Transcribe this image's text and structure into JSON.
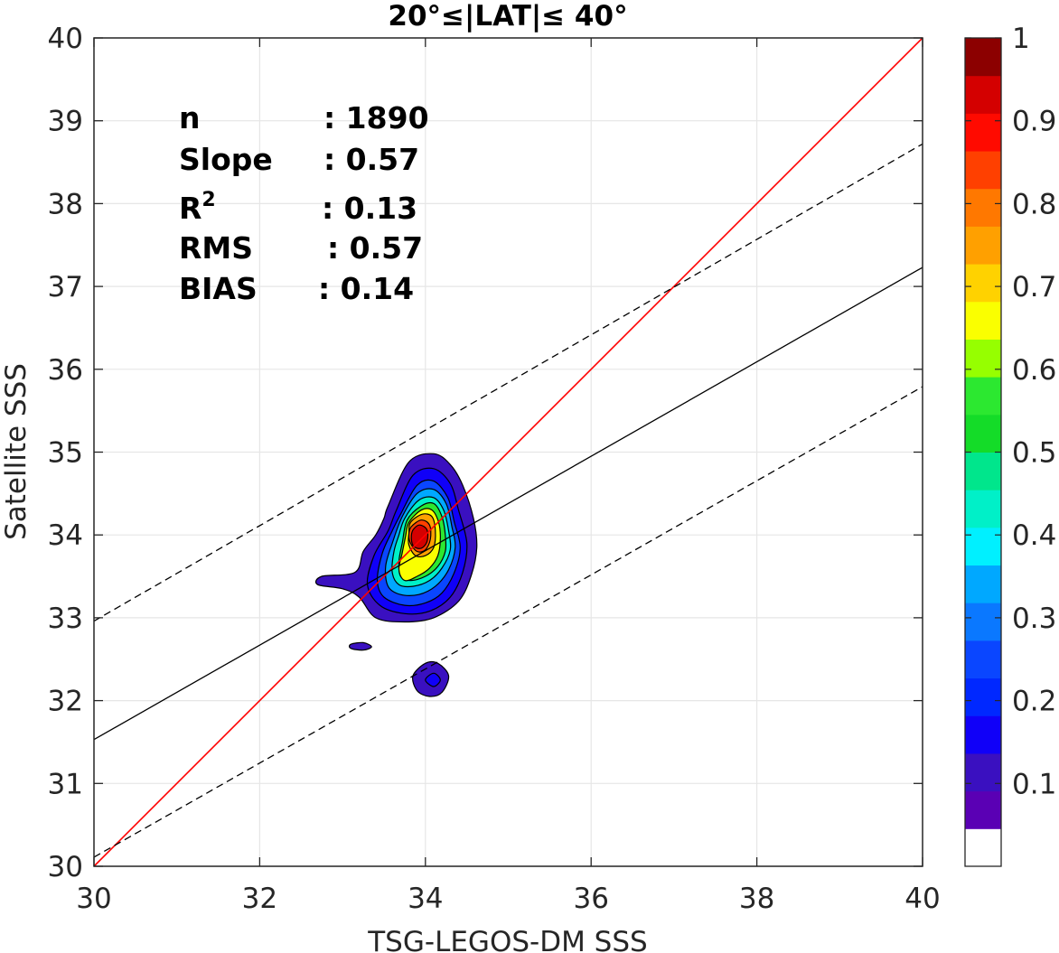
{
  "chart_data": {
    "type": "contour",
    "title": "20°≤|LAT|≤ 40°",
    "xlabel": "TSG-LEGOS-DM SSS",
    "ylabel": "Satellite SSS",
    "xlim": [
      30,
      40
    ],
    "ylim": [
      30,
      40
    ],
    "x_ticks": [
      30,
      32,
      34,
      36,
      38,
      40
    ],
    "y_ticks": [
      30,
      31,
      32,
      33,
      34,
      35,
      36,
      37,
      38,
      39,
      40
    ],
    "grid": true,
    "stats": [
      {
        "label": "n",
        "sep": ":",
        "value": "1890"
      },
      {
        "label": "Slope",
        "sep": ":",
        "value": "0.57"
      },
      {
        "label": "R",
        "sup": "2",
        "sep": ":",
        "value": "0.13"
      },
      {
        "label": "RMS",
        "sep": ":",
        "value": "0.57"
      },
      {
        "label": "BIAS",
        "sep": ":",
        "value": "0.14"
      }
    ],
    "lines": [
      {
        "name": "one-to-one",
        "color": "#ff0000",
        "style": "solid",
        "points": [
          [
            30,
            30
          ],
          [
            40,
            40
          ]
        ]
      },
      {
        "name": "regression",
        "color": "#000000",
        "style": "solid",
        "points": [
          [
            30,
            31.53
          ],
          [
            40,
            37.23
          ]
        ]
      },
      {
        "name": "upper-bound",
        "color": "#000000",
        "style": "dashed",
        "points": [
          [
            30,
            32.96
          ],
          [
            40,
            38.72
          ]
        ]
      },
      {
        "name": "lower-bound",
        "color": "#000000",
        "style": "dashed",
        "points": [
          [
            30,
            30.11
          ],
          [
            40,
            35.79
          ]
        ]
      }
    ],
    "contour_levels": [
      {
        "level": 0.05,
        "color": "#3a10c0",
        "points": [
          [
            33.55,
            34.35
          ],
          [
            33.8,
            34.88
          ],
          [
            34.1,
            34.98
          ],
          [
            34.3,
            34.85
          ],
          [
            34.45,
            34.6
          ],
          [
            34.58,
            34.2
          ],
          [
            34.62,
            33.85
          ],
          [
            34.55,
            33.5
          ],
          [
            34.4,
            33.2
          ],
          [
            34.1,
            33.0
          ],
          [
            33.75,
            32.95
          ],
          [
            33.4,
            33.0
          ],
          [
            33.2,
            33.25
          ],
          [
            33.0,
            33.35
          ],
          [
            32.7,
            33.4
          ],
          [
            32.75,
            33.5
          ],
          [
            33.15,
            33.55
          ],
          [
            33.25,
            33.8
          ],
          [
            33.4,
            34.0
          ],
          [
            33.5,
            34.2
          ]
        ]
      },
      {
        "level": 0.1,
        "color": "#1000f8",
        "points": [
          [
            33.65,
            34.3
          ],
          [
            33.85,
            34.72
          ],
          [
            34.1,
            34.8
          ],
          [
            34.3,
            34.62
          ],
          [
            34.4,
            34.3
          ],
          [
            34.5,
            33.9
          ],
          [
            34.45,
            33.55
          ],
          [
            34.3,
            33.25
          ],
          [
            34.05,
            33.08
          ],
          [
            33.75,
            33.05
          ],
          [
            33.45,
            33.15
          ],
          [
            33.3,
            33.4
          ],
          [
            33.38,
            33.75
          ],
          [
            33.55,
            34.05
          ]
        ]
      },
      {
        "level": 0.2,
        "color": "#0a46ff",
        "points": [
          [
            33.7,
            34.25
          ],
          [
            33.9,
            34.6
          ],
          [
            34.1,
            34.65
          ],
          [
            34.27,
            34.45
          ],
          [
            34.35,
            34.15
          ],
          [
            34.42,
            33.85
          ],
          [
            34.35,
            33.55
          ],
          [
            34.2,
            33.3
          ],
          [
            34.0,
            33.18
          ],
          [
            33.75,
            33.15
          ],
          [
            33.5,
            33.25
          ],
          [
            33.42,
            33.45
          ],
          [
            33.48,
            33.78
          ],
          [
            33.6,
            34.05
          ]
        ]
      },
      {
        "level": 0.3,
        "color": "#00a8ff",
        "points": [
          [
            33.72,
            34.22
          ],
          [
            33.9,
            34.5
          ],
          [
            34.1,
            34.55
          ],
          [
            34.25,
            34.38
          ],
          [
            34.32,
            34.1
          ],
          [
            34.36,
            33.85
          ],
          [
            34.28,
            33.58
          ],
          [
            34.12,
            33.38
          ],
          [
            33.92,
            33.28
          ],
          [
            33.7,
            33.28
          ],
          [
            33.55,
            33.38
          ],
          [
            33.52,
            33.62
          ],
          [
            33.6,
            33.9
          ]
        ]
      },
      {
        "level": 0.4,
        "color": "#00f0c8",
        "points": [
          [
            33.75,
            34.2
          ],
          [
            33.92,
            34.42
          ],
          [
            34.1,
            34.45
          ],
          [
            34.22,
            34.3
          ],
          [
            34.28,
            34.05
          ],
          [
            34.3,
            33.82
          ],
          [
            34.2,
            33.6
          ],
          [
            34.05,
            33.45
          ],
          [
            33.85,
            33.38
          ],
          [
            33.68,
            33.4
          ],
          [
            33.6,
            33.55
          ],
          [
            33.62,
            33.8
          ],
          [
            33.68,
            34.0
          ]
        ]
      },
      {
        "level": 0.5,
        "color": "#2ce830",
        "points": [
          [
            33.78,
            34.18
          ],
          [
            33.95,
            34.35
          ],
          [
            34.1,
            34.38
          ],
          [
            34.2,
            34.22
          ],
          [
            34.24,
            34.0
          ],
          [
            34.24,
            33.8
          ],
          [
            34.15,
            33.62
          ],
          [
            34.0,
            33.5
          ],
          [
            33.82,
            33.45
          ],
          [
            33.7,
            33.5
          ],
          [
            33.68,
            33.68
          ],
          [
            33.72,
            33.9
          ]
        ]
      },
      {
        "level": 0.6,
        "color": "#faff00",
        "points": [
          [
            33.8,
            34.15
          ],
          [
            33.95,
            34.3
          ],
          [
            34.08,
            34.3
          ],
          [
            34.16,
            34.15
          ],
          [
            34.18,
            33.95
          ],
          [
            34.15,
            33.75
          ],
          [
            34.05,
            33.6
          ],
          [
            33.9,
            33.5
          ],
          [
            33.75,
            33.45
          ],
          [
            33.68,
            33.58
          ],
          [
            33.72,
            33.78
          ],
          [
            33.76,
            33.98
          ]
        ]
      },
      {
        "level": 0.7,
        "color": "#ffa000",
        "points": [
          [
            33.82,
            34.15
          ],
          [
            33.96,
            34.25
          ],
          [
            34.08,
            34.22
          ],
          [
            34.12,
            34.05
          ],
          [
            34.1,
            33.85
          ],
          [
            34.0,
            33.75
          ],
          [
            33.88,
            33.75
          ],
          [
            33.8,
            33.88
          ],
          [
            33.8,
            34.02
          ]
        ]
      },
      {
        "level": 0.8,
        "color": "#ff4000",
        "points": [
          [
            33.83,
            34.1
          ],
          [
            33.95,
            34.18
          ],
          [
            34.05,
            34.12
          ],
          [
            34.06,
            33.95
          ],
          [
            34.0,
            33.82
          ],
          [
            33.9,
            33.8
          ],
          [
            33.82,
            33.9
          ],
          [
            33.8,
            34.0
          ]
        ]
      },
      {
        "level": 0.9,
        "color": "#d40000",
        "points": [
          [
            33.85,
            34.06
          ],
          [
            33.93,
            34.12
          ],
          [
            34.02,
            34.06
          ],
          [
            34.02,
            33.92
          ],
          [
            33.95,
            33.84
          ],
          [
            33.86,
            33.86
          ],
          [
            33.83,
            33.96
          ]
        ]
      },
      {
        "level": 0.05,
        "color": "#3a10c0",
        "points": [
          [
            33.1,
            32.68
          ],
          [
            33.25,
            32.7
          ],
          [
            33.35,
            32.65
          ],
          [
            33.25,
            32.61
          ],
          [
            33.1,
            32.63
          ]
        ]
      },
      {
        "level": 0.05,
        "color": "#3a10c0",
        "points": [
          [
            33.85,
            32.3
          ],
          [
            34.0,
            32.45
          ],
          [
            34.15,
            32.45
          ],
          [
            34.28,
            32.3
          ],
          [
            34.2,
            32.1
          ],
          [
            34.05,
            32.05
          ],
          [
            33.9,
            32.12
          ]
        ]
      },
      {
        "level": 0.1,
        "color": "#1000f8",
        "points": [
          [
            34.0,
            32.25
          ],
          [
            34.1,
            32.33
          ],
          [
            34.18,
            32.25
          ],
          [
            34.1,
            32.17
          ]
        ]
      }
    ],
    "colorbar": {
      "ticks": [
        0.1,
        0.2,
        0.3,
        0.4,
        0.5,
        0.6,
        0.7,
        0.8,
        0.9,
        1
      ],
      "tick_labels": [
        "0.1",
        "0.2",
        "0.3",
        "0.4",
        "0.5",
        "0.6",
        "0.7",
        "0.8",
        "0.9",
        "1"
      ],
      "range": [
        0,
        1
      ],
      "colors": [
        "#ffffff",
        "#5a00b4",
        "#3a10c0",
        "#1000f8",
        "#0028ff",
        "#0a46ff",
        "#0a78ff",
        "#00a8ff",
        "#00f0ff",
        "#00f0c8",
        "#00e68c",
        "#14dc28",
        "#2ce830",
        "#96ff00",
        "#faff00",
        "#ffd200",
        "#ffa000",
        "#ff7800",
        "#ff4000",
        "#ff0a00",
        "#d40000",
        "#8c0000"
      ]
    }
  }
}
